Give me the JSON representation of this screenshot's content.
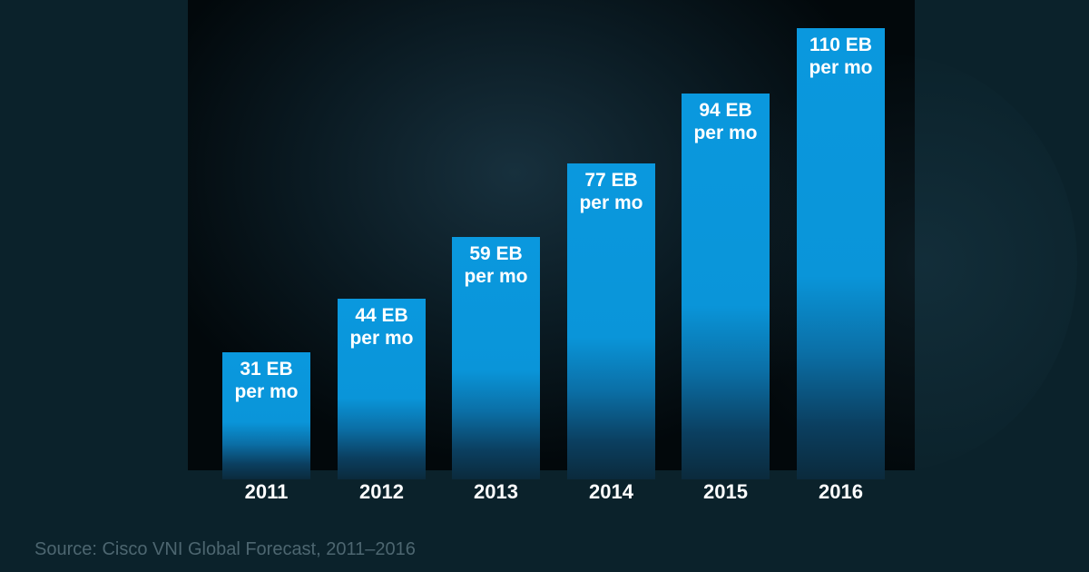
{
  "chart_data": {
    "type": "bar",
    "categories": [
      "2011",
      "2012",
      "2013",
      "2014",
      "2015",
      "2016"
    ],
    "values": [
      31,
      44,
      59,
      77,
      94,
      110
    ],
    "data_labels": [
      [
        "31 EB",
        "per mo"
      ],
      [
        "44 EB",
        "per mo"
      ],
      [
        "59 EB",
        "per mo"
      ],
      [
        "77 EB",
        "per mo"
      ],
      [
        "94 EB",
        "per mo"
      ],
      [
        "110 EB",
        "per mo"
      ]
    ],
    "unit": "EB per mo",
    "title": "",
    "xlabel": "",
    "ylabel": "",
    "ylim": [
      0,
      110
    ],
    "grid": false,
    "bar_color": "#0a98de",
    "background": "#0b222b"
  },
  "source": "Source: Cisco VNI Global Forecast, 2011–2016"
}
